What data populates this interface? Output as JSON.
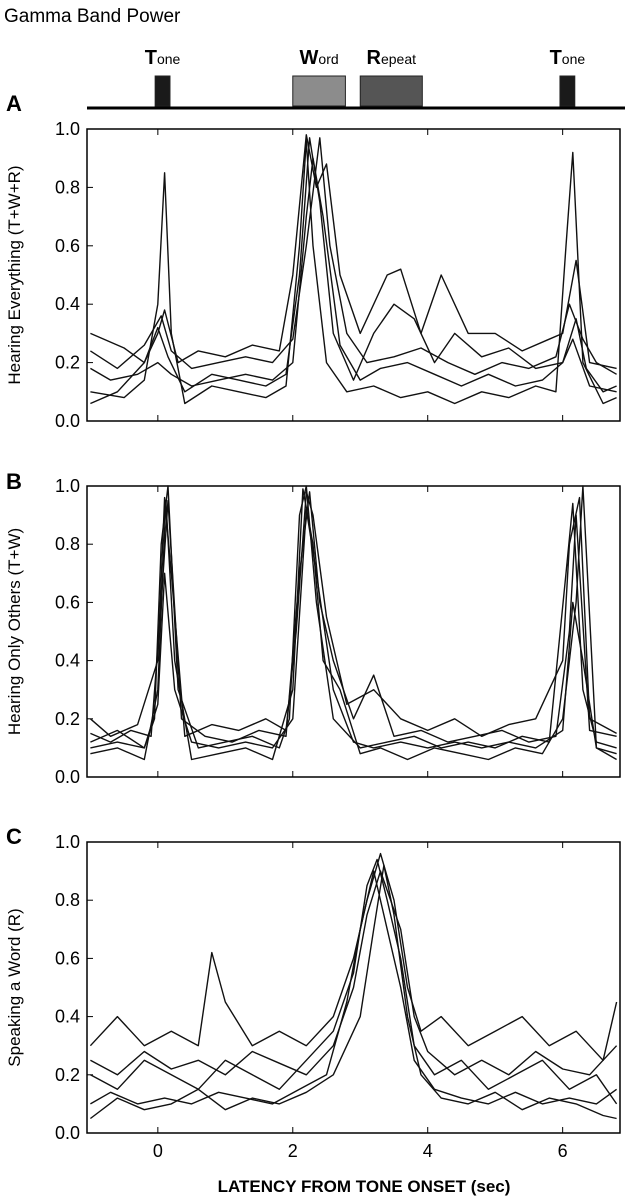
{
  "figure": {
    "title": "Gamma Band Power",
    "xlabel": "LATENCY FROM TONE ONSET (sec)"
  },
  "events": [
    {
      "initial": "T",
      "rest": "one",
      "start": -0.04,
      "end": 0.18,
      "color": "#1a1a1a"
    },
    {
      "initial": "W",
      "rest": "ord",
      "start": 2.0,
      "end": 2.78,
      "color": "#8c8c8c"
    },
    {
      "initial": "R",
      "rest": "epeat",
      "start": 3.0,
      "end": 3.92,
      "color": "#555555"
    },
    {
      "initial": "T",
      "rest": "one",
      "start": 5.96,
      "end": 6.18,
      "color": "#1a1a1a"
    }
  ],
  "chart_data": [
    {
      "type": "line",
      "panel_label": "A",
      "ylabel": "Hearing  Everything  (T+W+R)",
      "xlim": [
        -1.05,
        6.85
      ],
      "ylim": [
        0,
        1
      ],
      "xticks": [
        0,
        2,
        4,
        6
      ],
      "yticks": [
        "0.0",
        "0.2",
        "0.4",
        "0.6",
        "0.8",
        "1.0"
      ],
      "xtick_labels": [],
      "series": [
        {
          "x": [
            -1.0,
            -0.5,
            -0.2,
            0.0,
            0.1,
            0.2,
            0.4,
            0.8,
            1.2,
            1.6,
            1.9,
            2.1,
            2.2,
            2.3,
            2.5,
            2.8,
            3.2,
            3.6,
            4.0,
            4.4,
            4.8,
            5.2,
            5.6,
            5.9,
            6.05,
            6.15,
            6.3,
            6.6,
            6.8
          ],
          "y": [
            0.1,
            0.08,
            0.14,
            0.4,
            0.85,
            0.3,
            0.06,
            0.12,
            0.1,
            0.08,
            0.12,
            0.6,
            0.96,
            0.6,
            0.2,
            0.1,
            0.12,
            0.08,
            0.1,
            0.06,
            0.1,
            0.08,
            0.12,
            0.1,
            0.6,
            0.92,
            0.2,
            0.06,
            0.08
          ]
        },
        {
          "x": [
            -1.0,
            -0.5,
            -0.2,
            0.0,
            0.1,
            0.3,
            0.6,
            1.0,
            1.4,
            1.8,
            2.0,
            2.2,
            2.35,
            2.5,
            2.7,
            3.0,
            3.4,
            3.6,
            3.9,
            4.2,
            4.6,
            5.0,
            5.4,
            5.8,
            6.0,
            6.2,
            6.4,
            6.8
          ],
          "y": [
            0.3,
            0.25,
            0.2,
            0.3,
            0.38,
            0.2,
            0.24,
            0.22,
            0.26,
            0.24,
            0.5,
            0.98,
            0.8,
            0.88,
            0.5,
            0.3,
            0.5,
            0.52,
            0.3,
            0.5,
            0.3,
            0.3,
            0.24,
            0.28,
            0.3,
            0.55,
            0.2,
            0.18
          ]
        },
        {
          "x": [
            -1.0,
            -0.6,
            -0.2,
            0.0,
            0.15,
            0.4,
            0.8,
            1.2,
            1.6,
            1.9,
            2.1,
            2.25,
            2.4,
            2.6,
            2.9,
            3.2,
            3.5,
            3.8,
            4.1,
            4.4,
            4.8,
            5.2,
            5.6,
            6.0,
            6.2,
            6.35,
            6.6,
            6.8
          ],
          "y": [
            0.06,
            0.1,
            0.2,
            0.32,
            0.22,
            0.1,
            0.16,
            0.14,
            0.12,
            0.16,
            0.5,
            0.97,
            0.75,
            0.3,
            0.14,
            0.3,
            0.4,
            0.35,
            0.2,
            0.3,
            0.22,
            0.25,
            0.18,
            0.2,
            0.35,
            0.18,
            0.1,
            0.12
          ]
        },
        {
          "x": [
            -1.0,
            -0.6,
            -0.2,
            0.05,
            0.2,
            0.5,
            0.9,
            1.3,
            1.7,
            2.0,
            2.2,
            2.4,
            2.55,
            2.8,
            3.1,
            3.5,
            3.9,
            4.3,
            4.7,
            5.1,
            5.5,
            5.9,
            6.1,
            6.3,
            6.5,
            6.8
          ],
          "y": [
            0.24,
            0.18,
            0.26,
            0.36,
            0.24,
            0.18,
            0.2,
            0.22,
            0.2,
            0.28,
            0.6,
            0.97,
            0.6,
            0.3,
            0.2,
            0.22,
            0.25,
            0.2,
            0.16,
            0.2,
            0.18,
            0.22,
            0.4,
            0.28,
            0.2,
            0.16
          ]
        },
        {
          "x": [
            -1.0,
            -0.7,
            -0.3,
            0.0,
            0.2,
            0.5,
            0.9,
            1.3,
            1.7,
            2.0,
            2.2,
            2.3,
            2.45,
            2.7,
            3.0,
            3.3,
            3.7,
            4.1,
            4.5,
            4.9,
            5.3,
            5.7,
            6.0,
            6.15,
            6.4,
            6.8
          ],
          "y": [
            0.18,
            0.14,
            0.16,
            0.2,
            0.16,
            0.12,
            0.14,
            0.16,
            0.14,
            0.2,
            0.7,
            0.9,
            0.7,
            0.26,
            0.14,
            0.18,
            0.2,
            0.16,
            0.12,
            0.16,
            0.12,
            0.14,
            0.2,
            0.28,
            0.12,
            0.1
          ]
        }
      ]
    },
    {
      "type": "line",
      "panel_label": "B",
      "ylabel": "Hearing  Only Others  (T+W)",
      "xlim": [
        -1.05,
        6.85
      ],
      "ylim": [
        0,
        1
      ],
      "xticks": [
        0,
        2,
        4,
        6
      ],
      "yticks": [
        "0.0",
        "0.2",
        "0.4",
        "0.6",
        "0.8",
        "1.0"
      ],
      "xtick_labels": [],
      "series": [
        {
          "x": [
            -1.0,
            -0.6,
            -0.2,
            -0.05,
            0.05,
            0.15,
            0.3,
            0.6,
            1.0,
            1.4,
            1.8,
            1.95,
            2.1,
            2.2,
            2.35,
            2.6,
            3.0,
            3.4,
            3.8,
            4.2,
            4.6,
            5.0,
            5.4,
            5.8,
            6.05,
            6.15,
            6.3,
            6.5,
            6.8
          ],
          "y": [
            0.12,
            0.16,
            0.1,
            0.2,
            0.8,
            1.0,
            0.3,
            0.1,
            0.12,
            0.14,
            0.1,
            0.2,
            0.9,
            1.0,
            0.6,
            0.2,
            0.1,
            0.12,
            0.14,
            0.1,
            0.12,
            0.1,
            0.14,
            0.12,
            0.7,
            0.94,
            0.3,
            0.12,
            0.1
          ]
        },
        {
          "x": [
            -1.0,
            -0.7,
            -0.3,
            0.0,
            0.1,
            0.2,
            0.4,
            0.8,
            1.2,
            1.6,
            1.9,
            2.05,
            2.2,
            2.3,
            2.5,
            2.8,
            3.2,
            3.6,
            4.0,
            4.4,
            4.8,
            5.2,
            5.6,
            6.0,
            6.1,
            6.25,
            6.4,
            6.8
          ],
          "y": [
            0.2,
            0.14,
            0.18,
            0.4,
            0.96,
            0.7,
            0.14,
            0.18,
            0.16,
            0.2,
            0.16,
            0.5,
            0.98,
            0.9,
            0.55,
            0.25,
            0.3,
            0.2,
            0.16,
            0.2,
            0.14,
            0.18,
            0.2,
            0.4,
            0.8,
            0.96,
            0.2,
            0.15
          ]
        },
        {
          "x": [
            -1.0,
            -0.6,
            -0.2,
            0.0,
            0.12,
            0.25,
            0.5,
            0.9,
            1.3,
            1.7,
            2.0,
            2.15,
            2.3,
            2.45,
            2.7,
            3.0,
            3.3,
            3.7,
            4.1,
            4.5,
            4.9,
            5.3,
            5.7,
            6.0,
            6.2,
            6.3,
            6.5,
            6.8
          ],
          "y": [
            0.08,
            0.1,
            0.06,
            0.3,
            0.95,
            0.4,
            0.06,
            0.08,
            0.1,
            0.06,
            0.3,
            0.99,
            0.8,
            0.4,
            0.3,
            0.08,
            0.1,
            0.06,
            0.1,
            0.08,
            0.06,
            0.1,
            0.08,
            0.2,
            0.6,
            1.0,
            0.1,
            0.08
          ]
        },
        {
          "x": [
            -1.0,
            -0.7,
            -0.4,
            -0.1,
            0.05,
            0.15,
            0.35,
            0.7,
            1.1,
            1.5,
            1.9,
            2.1,
            2.25,
            2.4,
            2.6,
            2.9,
            3.2,
            3.5,
            3.9,
            4.3,
            4.7,
            5.1,
            5.5,
            5.9,
            6.1,
            6.2,
            6.4,
            6.8
          ],
          "y": [
            0.15,
            0.12,
            0.16,
            0.14,
            0.6,
            0.95,
            0.2,
            0.14,
            0.12,
            0.16,
            0.14,
            0.7,
            0.98,
            0.6,
            0.4,
            0.2,
            0.35,
            0.14,
            0.16,
            0.12,
            0.14,
            0.16,
            0.12,
            0.14,
            0.5,
            0.9,
            0.16,
            0.14
          ]
        },
        {
          "x": [
            -1.0,
            -0.6,
            -0.2,
            0.0,
            0.1,
            0.25,
            0.5,
            0.9,
            1.3,
            1.7,
            2.0,
            2.2,
            2.35,
            2.6,
            2.9,
            3.2,
            3.6,
            4.0,
            4.4,
            4.8,
            5.2,
            5.6,
            6.0,
            6.15,
            6.3,
            6.5,
            6.8
          ],
          "y": [
            0.1,
            0.12,
            0.1,
            0.25,
            0.7,
            0.3,
            0.12,
            0.1,
            0.12,
            0.1,
            0.2,
            0.92,
            0.7,
            0.3,
            0.12,
            0.1,
            0.12,
            0.1,
            0.12,
            0.1,
            0.12,
            0.1,
            0.16,
            0.6,
            0.4,
            0.1,
            0.06
          ]
        }
      ]
    },
    {
      "type": "line",
      "panel_label": "C",
      "ylabel": "Speaking a Word  (R)",
      "xlim": [
        -1.05,
        6.85
      ],
      "ylim": [
        0,
        1
      ],
      "xticks": [
        0,
        2,
        4,
        6
      ],
      "yticks": [
        "0.0",
        "0.2",
        "0.4",
        "0.6",
        "0.8",
        "1.0"
      ],
      "xtick_labels": [
        "0",
        "2",
        "4",
        "6"
      ],
      "series": [
        {
          "x": [
            -1.0,
            -0.6,
            -0.2,
            0.2,
            0.6,
            0.8,
            1.0,
            1.4,
            1.8,
            2.2,
            2.6,
            2.9,
            3.1,
            3.3,
            3.5,
            3.7,
            3.9,
            4.2,
            4.6,
            5.0,
            5.4,
            5.8,
            6.2,
            6.6,
            6.8
          ],
          "y": [
            0.3,
            0.4,
            0.3,
            0.35,
            0.3,
            0.62,
            0.45,
            0.3,
            0.35,
            0.3,
            0.4,
            0.6,
            0.8,
            0.96,
            0.8,
            0.5,
            0.35,
            0.4,
            0.3,
            0.35,
            0.4,
            0.3,
            0.35,
            0.25,
            0.45
          ]
        },
        {
          "x": [
            -1.0,
            -0.6,
            -0.2,
            0.2,
            0.6,
            1.0,
            1.4,
            1.8,
            2.2,
            2.6,
            2.9,
            3.1,
            3.25,
            3.4,
            3.6,
            3.8,
            4.1,
            4.5,
            4.9,
            5.3,
            5.7,
            6.1,
            6.5,
            6.8
          ],
          "y": [
            0.2,
            0.15,
            0.25,
            0.2,
            0.15,
            0.25,
            0.2,
            0.15,
            0.25,
            0.35,
            0.55,
            0.85,
            0.94,
            0.8,
            0.6,
            0.3,
            0.2,
            0.25,
            0.15,
            0.2,
            0.25,
            0.15,
            0.2,
            0.1
          ]
        },
        {
          "x": [
            -1.0,
            -0.7,
            -0.3,
            0.1,
            0.5,
            0.9,
            1.3,
            1.7,
            2.1,
            2.5,
            2.8,
            3.0,
            3.2,
            3.4,
            3.6,
            3.8,
            4.1,
            4.5,
            4.9,
            5.3,
            5.7,
            6.1,
            6.5,
            6.8
          ],
          "y": [
            0.1,
            0.14,
            0.1,
            0.12,
            0.1,
            0.14,
            0.12,
            0.1,
            0.15,
            0.2,
            0.45,
            0.7,
            0.9,
            0.7,
            0.5,
            0.25,
            0.15,
            0.12,
            0.1,
            0.14,
            0.1,
            0.12,
            0.1,
            0.15
          ]
        },
        {
          "x": [
            -1.0,
            -0.6,
            -0.2,
            0.2,
            0.6,
            1.0,
            1.4,
            1.8,
            2.2,
            2.6,
            2.9,
            3.1,
            3.3,
            3.45,
            3.6,
            3.8,
            4.0,
            4.4,
            4.8,
            5.2,
            5.6,
            6.0,
            6.4,
            6.8
          ],
          "y": [
            0.25,
            0.2,
            0.28,
            0.22,
            0.25,
            0.2,
            0.28,
            0.24,
            0.2,
            0.3,
            0.5,
            0.75,
            0.9,
            0.8,
            0.7,
            0.4,
            0.28,
            0.2,
            0.25,
            0.2,
            0.28,
            0.22,
            0.2,
            0.3
          ]
        },
        {
          "x": [
            -1.0,
            -0.6,
            -0.2,
            0.2,
            0.6,
            1.0,
            1.4,
            1.8,
            2.2,
            2.6,
            3.0,
            3.2,
            3.35,
            3.5,
            3.7,
            3.9,
            4.2,
            4.6,
            5.0,
            5.4,
            5.8,
            6.2,
            6.6,
            6.8
          ],
          "y": [
            0.05,
            0.12,
            0.08,
            0.1,
            0.15,
            0.08,
            0.12,
            0.1,
            0.14,
            0.2,
            0.4,
            0.7,
            0.92,
            0.75,
            0.4,
            0.2,
            0.12,
            0.1,
            0.14,
            0.08,
            0.12,
            0.1,
            0.06,
            0.05
          ]
        }
      ]
    }
  ]
}
